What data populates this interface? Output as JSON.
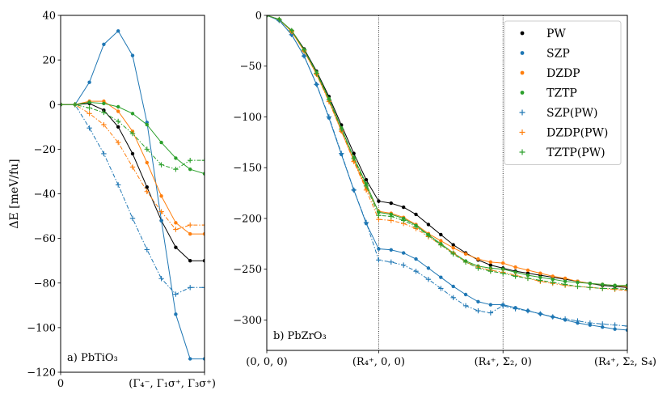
{
  "chart_data": [
    {
      "type": "line",
      "panel_label": "a) PbTiO₃",
      "ylabel": "ΔE [meV/fu]",
      "xlabel": "",
      "ylim": [
        -120,
        40
      ],
      "yticks": [
        "40",
        "20",
        "0",
        "−20",
        "−40",
        "−60",
        "−80",
        "−100",
        "−120"
      ],
      "yticks_values": [
        40,
        20,
        0,
        -20,
        -40,
        -60,
        -80,
        -100,
        -120
      ],
      "xlim": [
        0,
        10
      ],
      "xticks": [
        {
          "x": 0,
          "label": "0"
        },
        {
          "x": 10,
          "label": "(Γ₄⁻, Γ₁σ⁺, Γ₃σ⁺)"
        }
      ],
      "x": [
        0,
        1,
        2,
        3,
        4,
        5,
        6,
        7,
        8,
        9,
        10
      ],
      "series": [
        {
          "name": "PW",
          "color": "#000000",
          "marker": "dot",
          "dash": "",
          "values": [
            0,
            0,
            0.5,
            -2.5,
            -10,
            -22,
            -37,
            -52,
            -64,
            -70,
            -70
          ]
        },
        {
          "name": "SZP",
          "color": "#1f77b4",
          "marker": "dot",
          "dash": "",
          "values": [
            0,
            0,
            10,
            27,
            33,
            22,
            -8,
            -52,
            -94,
            -114,
            -114
          ]
        },
        {
          "name": "DZDP",
          "color": "#ff7f0e",
          "marker": "dot",
          "dash": "",
          "values": [
            0,
            0,
            1.5,
            1.5,
            -3,
            -12,
            -26,
            -41,
            -53,
            -58,
            -58
          ]
        },
        {
          "name": "TZTP",
          "color": "#2ca02c",
          "marker": "dot",
          "dash": "",
          "values": [
            0,
            0,
            1,
            0.5,
            -1,
            -4,
            -9,
            -17,
            -24,
            -29,
            -31
          ]
        },
        {
          "name": "SZP(PW)",
          "color": "#1f77b4",
          "marker": "plus",
          "dash": "5,2,1.5,2",
          "values": [
            0,
            0,
            -10.5,
            -22,
            -36,
            -51,
            -65,
            -78,
            -85,
            -82,
            -82
          ]
        },
        {
          "name": "DZDP(PW)",
          "color": "#ff7f0e",
          "marker": "plus",
          "dash": "5,2,1.5,2",
          "values": [
            0,
            0,
            -4,
            -9,
            -17,
            -28,
            -39,
            -48,
            -56,
            -54,
            -54
          ]
        },
        {
          "name": "TZTP(PW)",
          "color": "#2ca02c",
          "marker": "plus",
          "dash": "5,2,1.5,2",
          "values": [
            0,
            0,
            -1.5,
            -3.5,
            -7.5,
            -13,
            -20,
            -27,
            -29,
            -25,
            -25
          ]
        }
      ]
    },
    {
      "type": "line",
      "panel_label": "b) PbZrO₃",
      "xlabel": "",
      "ylabel": "",
      "ylim": [
        -330,
        0
      ],
      "yticks": [
        "0",
        "−50",
        "−100",
        "−150",
        "−200",
        "−250",
        "−300"
      ],
      "yticks_values": [
        0,
        -50,
        -100,
        -150,
        -200,
        -250,
        -300
      ],
      "xlim": [
        0,
        29
      ],
      "xticks": [
        {
          "x": 0,
          "label": "(0, 0, 0)"
        },
        {
          "x": 9,
          "label": "(R₄⁺, 0, 0)"
        },
        {
          "x": 19,
          "label": "(R₄⁺, Σ₂, 0)"
        },
        {
          "x": 29,
          "label": "(R₄⁺, Σ₂, S₄)"
        }
      ],
      "vlines": [
        9,
        19
      ],
      "legend_position": "top-right",
      "x": [
        0,
        1,
        2,
        3,
        4,
        5,
        6,
        7,
        8,
        9,
        10,
        11,
        12,
        13,
        14,
        15,
        16,
        17,
        18,
        19,
        20,
        21,
        22,
        23,
        24,
        25,
        26,
        27,
        28,
        29
      ],
      "series": [
        {
          "name": "PW",
          "color": "#000000",
          "marker": "dot",
          "dash": "",
          "values": [
            0,
            -4,
            -15,
            -33,
            -55,
            -80,
            -108,
            -136,
            -162,
            -183,
            -185,
            -189,
            -196,
            -206,
            -216,
            -226,
            -234,
            -241,
            -246,
            -249,
            -252,
            -254,
            -256,
            -258,
            -260,
            -262,
            -264,
            -266,
            -267,
            -268
          ]
        },
        {
          "name": "SZP",
          "color": "#1f77b4",
          "marker": "dot",
          "dash": "",
          "values": [
            0,
            -5,
            -19,
            -40,
            -68,
            -101,
            -137,
            -172,
            -205,
            -230,
            -231,
            -234,
            -240,
            -249,
            -258,
            -267,
            -275,
            -282,
            -285,
            -285,
            -288,
            -291,
            -294,
            -297,
            -300,
            -303,
            -305,
            -307,
            -309,
            -310
          ]
        },
        {
          "name": "DZDP",
          "color": "#ff7f0e",
          "marker": "dot",
          "dash": "",
          "values": [
            0,
            -4,
            -16,
            -35,
            -58,
            -84,
            -114,
            -143,
            -170,
            -193,
            -195,
            -199,
            -206,
            -215,
            -222,
            -229,
            -235,
            -240,
            -243,
            -244,
            -248,
            -251,
            -254,
            -257,
            -259,
            -262,
            -264,
            -265,
            -266,
            -267
          ]
        },
        {
          "name": "TZTP",
          "color": "#2ca02c",
          "marker": "dot",
          "dash": "",
          "values": [
            0,
            -4,
            -15,
            -34,
            -56,
            -82,
            -111,
            -140,
            -166,
            -194,
            -196,
            -200,
            -207,
            -216,
            -225,
            -234,
            -242,
            -247,
            -249,
            -250,
            -253,
            -256,
            -258,
            -260,
            -262,
            -263,
            -264,
            -265,
            -266,
            -266
          ]
        },
        {
          "name": "SZP(PW)",
          "color": "#1f77b4",
          "marker": "plus",
          "dash": "5,2,1.5,2",
          "values": [
            0,
            -5,
            -19,
            -40,
            -68,
            -100,
            -136,
            -172,
            -204,
            -241,
            -243,
            -246,
            -252,
            -260,
            -269,
            -278,
            -286,
            -291,
            -293,
            -286,
            -289,
            -291,
            -294,
            -297,
            -299,
            -301,
            -303,
            -304,
            -305,
            -306
          ]
        },
        {
          "name": "DZDP(PW)",
          "color": "#ff7f0e",
          "marker": "plus",
          "dash": "5,2,1.5,2",
          "values": [
            0,
            -4,
            -16,
            -35,
            -58,
            -85,
            -114,
            -144,
            -172,
            -201,
            -202,
            -205,
            -210,
            -218,
            -226,
            -234,
            -243,
            -248,
            -251,
            -253,
            -256,
            -259,
            -262,
            -264,
            -266,
            -267,
            -268,
            -269,
            -270,
            -271
          ]
        },
        {
          "name": "TZTP(PW)",
          "color": "#2ca02c",
          "marker": "plus",
          "dash": "5,2,1.5,2",
          "values": [
            0,
            -4,
            -15,
            -34,
            -57,
            -83,
            -112,
            -141,
            -168,
            -197,
            -198,
            -202,
            -208,
            -217,
            -226,
            -235,
            -243,
            -249,
            -252,
            -254,
            -257,
            -259,
            -261,
            -263,
            -265,
            -267,
            -268,
            -269,
            -269,
            -270
          ]
        }
      ]
    }
  ]
}
